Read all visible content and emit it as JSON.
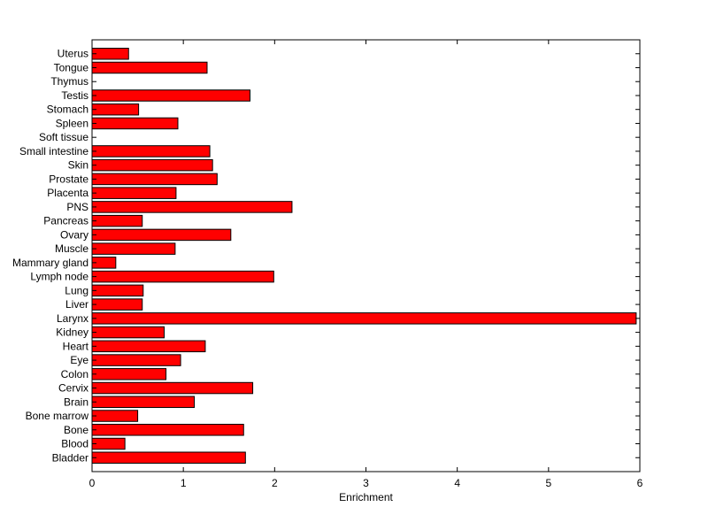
{
  "chart_data": {
    "type": "bar",
    "orientation": "horizontal",
    "title": "",
    "xlabel": "Enrichment",
    "ylabel": "",
    "xlim": [
      0,
      6
    ],
    "xticks": [
      0,
      1,
      2,
      3,
      4,
      5,
      6
    ],
    "grid": false,
    "legend": "none",
    "bar_color": "#ff0000",
    "bar_edge_color": "#000000",
    "categories": [
      "Bladder",
      "Blood",
      "Bone",
      "Bone marrow",
      "Brain",
      "Cervix",
      "Colon",
      "Eye",
      "Heart",
      "Kidney",
      "Larynx",
      "Liver",
      "Lung",
      "Lymph node",
      "Mammary gland",
      "Muscle",
      "Ovary",
      "Pancreas",
      "PNS",
      "Placenta",
      "Prostate",
      "Skin",
      "Small intestine",
      "Soft tissue",
      "Spleen",
      "Stomach",
      "Testis",
      "Thymus",
      "Tongue",
      "Uterus"
    ],
    "values": [
      1.68,
      0.36,
      1.66,
      0.5,
      1.12,
      1.76,
      0.81,
      0.97,
      1.24,
      0.79,
      5.96,
      0.55,
      0.56,
      1.99,
      0.26,
      0.91,
      1.52,
      0.55,
      2.19,
      0.92,
      1.37,
      1.32,
      1.29,
      0,
      0.94,
      0.51,
      1.73,
      0,
      1.26,
      0.4
    ]
  }
}
